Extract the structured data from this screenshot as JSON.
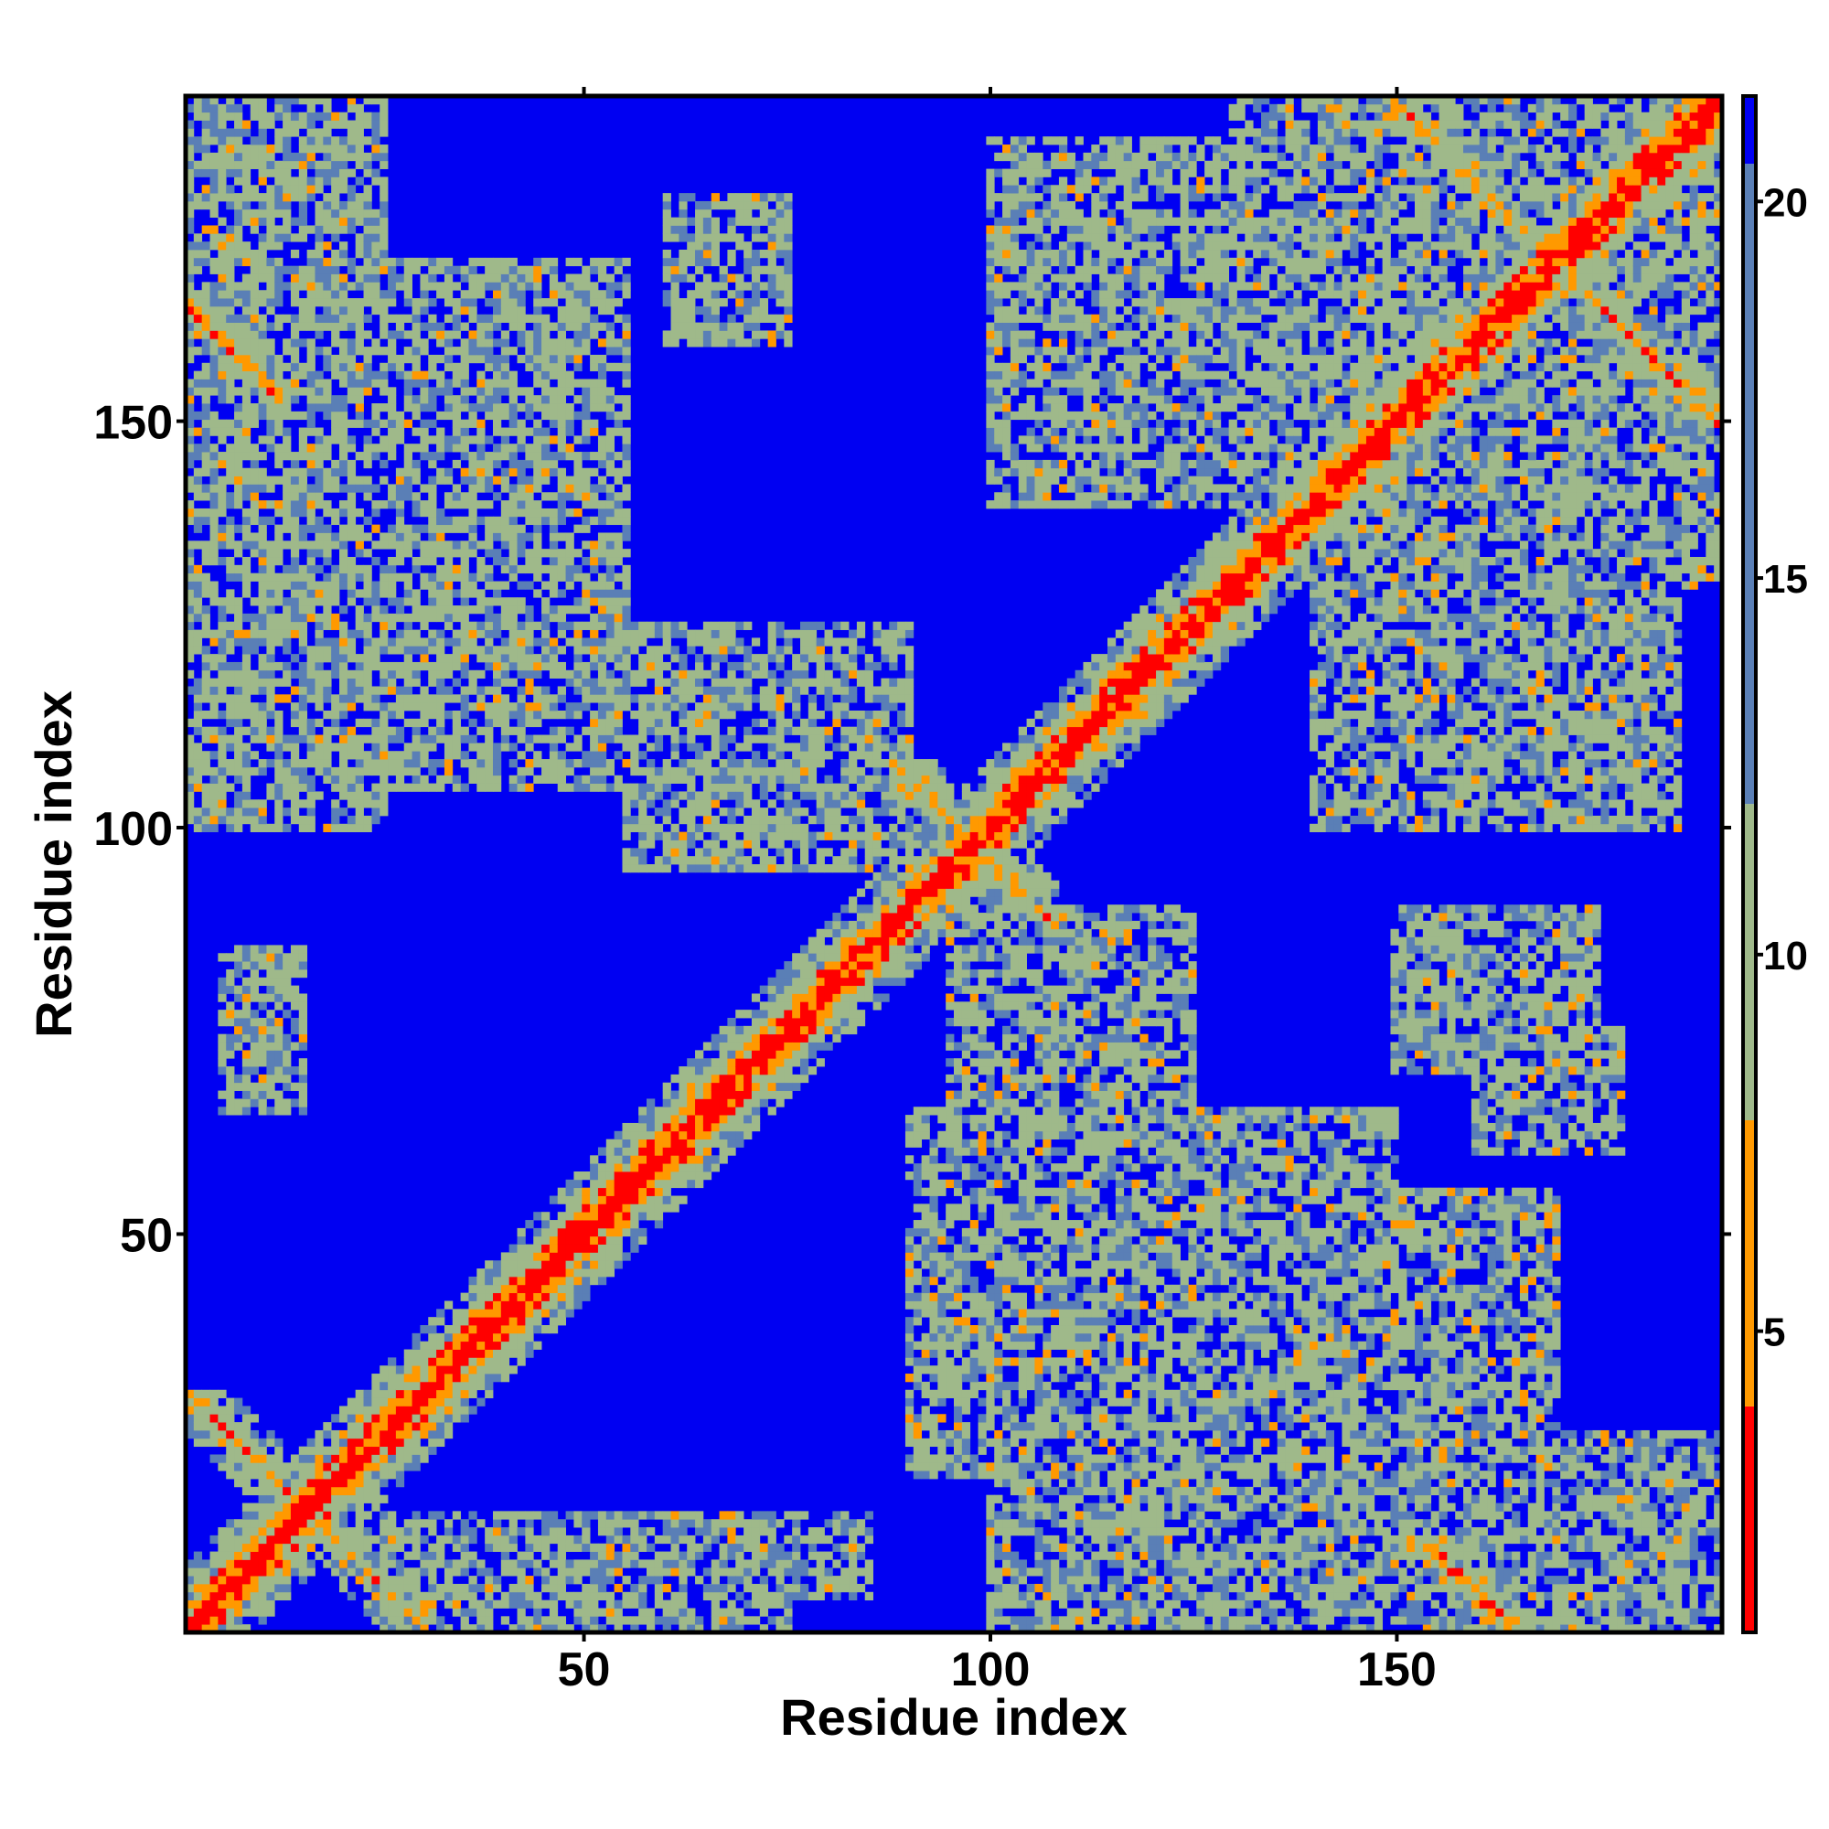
{
  "chart_data": {
    "type": "heatmap",
    "title": "",
    "xlabel": "Residue index",
    "ylabel": "Residue index",
    "n_residues": 190,
    "xlim": [
      1,
      190
    ],
    "ylim": [
      1,
      190
    ],
    "x_ticks": [
      50,
      100,
      150
    ],
    "y_ticks": [
      50,
      100,
      150
    ],
    "colorbar": {
      "ticks": [
        5,
        10,
        15,
        20
      ],
      "range": [
        1,
        21.4
      ],
      "colors": {
        "near": "#ff0000",
        "close": "#ff9900",
        "mid": "#9fb98a",
        "far_edge": "#5a7fb6",
        "background": "#0000f2"
      }
    },
    "contact_bands": {
      "diagonal": {
        "offset": 0,
        "width": 6
      },
      "antiparallel_segments": [
        {
          "i": [
            1,
            30
          ],
          "j": [
            1,
            30
          ],
          "note": "hairpin region"
        },
        {
          "i": [
            88,
            108
          ],
          "j": [
            88,
            108
          ],
          "note": "cross at ~97"
        },
        {
          "i": [
            148,
            170
          ],
          "j": [
            1,
            12
          ]
        },
        {
          "i": [
            170,
            190
          ],
          "j": [
            150,
            170
          ]
        }
      ],
      "offdiagonal_blobs": [
        {
          "i": [
            1,
            25
          ],
          "j": [
            100,
            190
          ]
        },
        {
          "i": [
            25,
            55
          ],
          "j": [
            105,
            170
          ]
        },
        {
          "i": [
            55,
            90
          ],
          "j": [
            95,
            125
          ]
        },
        {
          "i": [
            60,
            75
          ],
          "j": [
            160,
            178
          ]
        },
        {
          "i": [
            100,
            130
          ],
          "j": [
            140,
            185
          ]
        },
        {
          "i": [
            130,
            190
          ],
          "j": [
            140,
            190
          ]
        },
        {
          "i": [
            150,
            180
          ],
          "j": [
            100,
            135
          ]
        },
        {
          "i": [
            150,
            175
          ],
          "j": [
            70,
            90
          ]
        },
        {
          "i": [
            90,
            150
          ],
          "j": [
            20,
            65
          ]
        },
        {
          "i": [
            100,
            190
          ],
          "j": [
            1,
            25
          ]
        },
        {
          "i": [
            25,
            75
          ],
          "j": [
            1,
            15
          ]
        },
        {
          "i": [
            5,
            15
          ],
          "j": [
            65,
            85
          ]
        }
      ]
    }
  }
}
